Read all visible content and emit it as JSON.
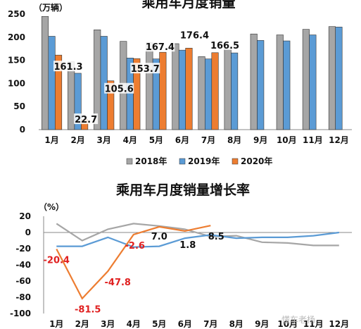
{
  "chart_data": [
    {
      "type": "bar",
      "title": "乘用车月度销量",
      "unit_label": "（万辆）",
      "categories": [
        "1月",
        "2月",
        "3月",
        "4月",
        "5月",
        "6月",
        "7月",
        "8月",
        "9月",
        "10月",
        "11月",
        "12月"
      ],
      "ylim": [
        0,
        250
      ],
      "yticks": [
        0,
        50,
        100,
        150,
        200,
        250
      ],
      "series": [
        {
          "name": "2018年",
          "color": "#a6a6a6",
          "values": [
            245,
            147,
            216,
            191,
            188,
            186,
            158,
            178,
            207,
            205,
            217,
            223
          ]
        },
        {
          "name": "2019年",
          "color": "#5b9bd5",
          "values": [
            202,
            122,
            202,
            155,
            153,
            172,
            153,
            166,
            193,
            192,
            205,
            222
          ]
        },
        {
          "name": "2020年",
          "color": "#ed7d31",
          "values": [
            161.3,
            22.7,
            105.6,
            153.7,
            167.4,
            176.4,
            166.5,
            null,
            null,
            null,
            null,
            null
          ]
        }
      ],
      "data_labels": [
        "161.3",
        "22.7",
        "105.6",
        "153.7",
        "167.4",
        "176.4",
        "166.5"
      ],
      "legend": "bottom"
    },
    {
      "type": "line",
      "title": "乘用车月度销量增长率",
      "unit_label": "（%）",
      "categories": [
        "1月",
        "2月",
        "3月",
        "4月",
        "5月",
        "6月",
        "7月",
        "8月",
        "9月",
        "10月",
        "11月",
        "12月"
      ],
      "ylim": [
        -100,
        20
      ],
      "yticks": [
        20,
        0,
        -20,
        -40,
        -60,
        -80,
        -100
      ],
      "series": [
        {
          "name": "2018年",
          "color": "#a6a6a6",
          "values": [
            11,
            -10,
            4,
            11,
            8,
            4,
            -5,
            -4,
            -12,
            -13,
            -16,
            -16
          ]
        },
        {
          "name": "2019年",
          "color": "#5b9bd5",
          "values": [
            -17,
            -17,
            -6,
            -18,
            -17,
            -7,
            -3,
            -7,
            -6,
            -6,
            -4,
            0
          ]
        },
        {
          "name": "2020年",
          "color": "#ed7d31",
          "values": [
            -20.4,
            -81.5,
            -47.8,
            -2.6,
            7.0,
            1.8,
            8.5,
            null,
            null,
            null,
            null,
            null
          ]
        }
      ],
      "data_labels": [
        {
          "text": "-20.4",
          "color": "red"
        },
        {
          "text": "-81.5",
          "color": "red"
        },
        {
          "text": "-47.8",
          "color": "red"
        },
        {
          "text": "-2.6",
          "color": "red"
        },
        {
          "text": "7.0",
          "color": "black"
        },
        {
          "text": "1.8",
          "color": "black"
        },
        {
          "text": "8.5",
          "color": "black"
        }
      ]
    }
  ],
  "watermark": "懂车老杨"
}
